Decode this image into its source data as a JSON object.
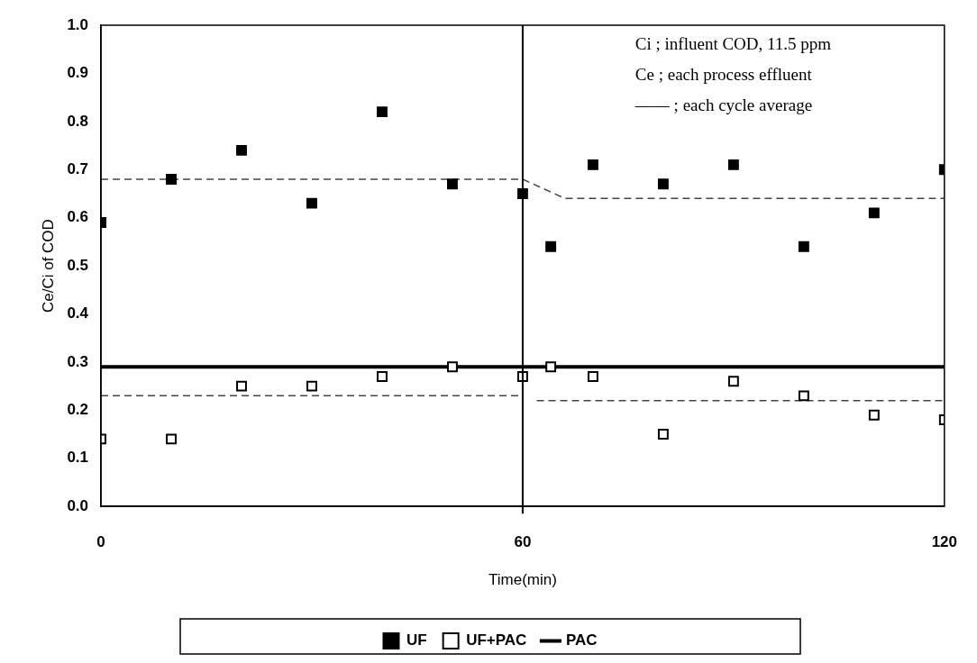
{
  "chart_data": {
    "type": "scatter",
    "xlabel": "Time(min)",
    "ylabel": "Ce/Ci of COD",
    "xlim": [
      0,
      120
    ],
    "xticks": [
      0,
      60,
      120
    ],
    "ylim": [
      0,
      1
    ],
    "yticks": [
      {
        "value": 0,
        "label": "0.0"
      },
      0.1,
      0.2,
      0.3,
      0.4,
      0.5,
      0.6,
      0.7,
      0.8,
      0.9,
      {
        "value": 1,
        "label": "1.0"
      }
    ],
    "series": [
      {
        "name": "UF",
        "marker": "square",
        "color": "#000000",
        "x": [
          0,
          10,
          20,
          30,
          40,
          50,
          60,
          64,
          70,
          80,
          90,
          100,
          110,
          120
        ],
        "values": [
          0.59,
          0.68,
          0.74,
          0.63,
          0.82,
          0.67,
          0.65,
          0.54,
          0.71,
          0.67,
          0.71,
          0.54,
          0.61,
          0.7
        ]
      },
      {
        "name": "UF+PAC",
        "marker": "square",
        "color": "#000000",
        "x": [
          0,
          10,
          20,
          30,
          40,
          50,
          60,
          64,
          70,
          80,
          90,
          100,
          110,
          120
        ],
        "values": [
          0.14,
          0.14,
          0.25,
          0.25,
          0.27,
          0.29,
          0.27,
          0.29,
          0.27,
          0.15,
          0.26,
          0.23,
          0.19,
          0.18
        ]
      },
      {
        "name": "PAC",
        "type": "line",
        "marker": "none",
        "line_style": "solid",
        "color": "#000000",
        "x": [
          0,
          120
        ],
        "values": [
          0.29,
          0.29
        ]
      },
      {
        "type": "line",
        "marker": "none",
        "line_style": "dashed",
        "color": "#444444",
        "x": [
          0,
          60,
          66,
          120
        ],
        "values": [
          0.68,
          0.68,
          0.64,
          0.64
        ]
      },
      {
        "type": "line",
        "marker": "none",
        "line_style": "dashed",
        "color": "#444444",
        "x": [
          0,
          60
        ],
        "values": [
          0.23,
          0.23
        ]
      },
      {
        "type": "line",
        "marker": "none",
        "line_style": "dashed",
        "color": "#444444",
        "x": [
          62,
          120
        ],
        "values": [
          0.22,
          0.22
        ]
      }
    ],
    "ref_lines": [
      {
        "axis": "x",
        "value": 60,
        "color": "#000000"
      }
    ],
    "annotations": [
      "Ci ; influent COD, 11.5 ppm",
      "Ce ; each process effluent",
      "—— ; each cycle average"
    ],
    "legend": "bottom",
    "grid": false
  }
}
